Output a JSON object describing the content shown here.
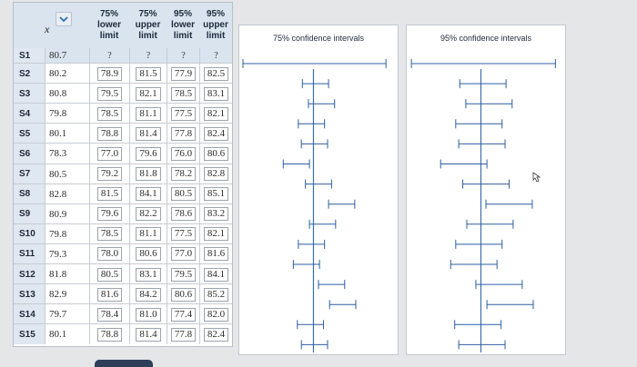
{
  "table": {
    "header": {
      "x_symbol": "x",
      "columns": [
        {
          "pct": "75%",
          "kind": "lower",
          "unit": "limit"
        },
        {
          "pct": "75%",
          "kind": "upper",
          "unit": "limit"
        },
        {
          "pct": "95%",
          "kind": "lower",
          "unit": "limit"
        },
        {
          "pct": "95%",
          "kind": "upper",
          "unit": "limit"
        }
      ]
    },
    "rows": [
      {
        "label": "S1",
        "x": "80.7",
        "c75l": "?",
        "c75u": "?",
        "c95l": "?",
        "c95u": "?"
      },
      {
        "label": "S2",
        "x": "80.2",
        "c75l": "78.9",
        "c75u": "81.5",
        "c95l": "77.9",
        "c95u": "82.5"
      },
      {
        "label": "S3",
        "x": "80.8",
        "c75l": "79.5",
        "c75u": "82.1",
        "c95l": "78.5",
        "c95u": "83.1"
      },
      {
        "label": "S4",
        "x": "79.8",
        "c75l": "78.5",
        "c75u": "81.1",
        "c95l": "77.5",
        "c95u": "82.1"
      },
      {
        "label": "S5",
        "x": "80.1",
        "c75l": "78.8",
        "c75u": "81.4",
        "c95l": "77.8",
        "c95u": "82.4"
      },
      {
        "label": "S6",
        "x": "78.3",
        "c75l": "77.0",
        "c75u": "79.6",
        "c95l": "76.0",
        "c95u": "80.6"
      },
      {
        "label": "S7",
        "x": "80.5",
        "c75l": "79.2",
        "c75u": "81.8",
        "c95l": "78.2",
        "c95u": "82.8"
      },
      {
        "label": "S8",
        "x": "82.8",
        "c75l": "81.5",
        "c75u": "84.1",
        "c95l": "80.5",
        "c95u": "85.1"
      },
      {
        "label": "S9",
        "x": "80.9",
        "c75l": "79.6",
        "c75u": "82.2",
        "c95l": "78.6",
        "c95u": "83.2"
      },
      {
        "label": "S10",
        "x": "79.8",
        "c75l": "78.5",
        "c75u": "81.1",
        "c95l": "77.5",
        "c95u": "82.1"
      },
      {
        "label": "S11",
        "x": "79.3",
        "c75l": "78.0",
        "c75u": "80.6",
        "c95l": "77.0",
        "c95u": "81.6"
      },
      {
        "label": "S12",
        "x": "81.8",
        "c75l": "80.5",
        "c75u": "83.1",
        "c95l": "79.5",
        "c95u": "84.1"
      },
      {
        "label": "S13",
        "x": "82.9",
        "c75l": "81.6",
        "c75u": "84.2",
        "c95l": "80.6",
        "c95u": "85.2"
      },
      {
        "label": "S14",
        "x": "79.7",
        "c75l": "78.4",
        "c75u": "81.0",
        "c95l": "77.4",
        "c95u": "82.0"
      },
      {
        "label": "S15",
        "x": "80.1",
        "c75l": "78.8",
        "c75u": "81.4",
        "c95l": "77.8",
        "c95u": "82.4"
      }
    ]
  },
  "panels": {
    "p75": {
      "title": "75% confidence intervals"
    },
    "p95": {
      "title": "95% confidence intervals"
    }
  },
  "chart_data": [
    {
      "type": "interval",
      "title": "75% confidence intervals",
      "center_line": 80.0,
      "xlim": [
        73.0,
        88.0
      ],
      "S1_interval": [
        73.0,
        87.2
      ],
      "intervals": [
        [
          78.9,
          81.5
        ],
        [
          79.5,
          82.1
        ],
        [
          78.5,
          81.1
        ],
        [
          78.8,
          81.4
        ],
        [
          77.0,
          79.6
        ],
        [
          79.2,
          81.8
        ],
        [
          81.5,
          84.1
        ],
        [
          79.6,
          82.2
        ],
        [
          78.5,
          81.1
        ],
        [
          78.0,
          80.6
        ],
        [
          80.5,
          83.1
        ],
        [
          81.6,
          84.2
        ],
        [
          78.4,
          81.0
        ],
        [
          78.8,
          81.4
        ]
      ]
    },
    {
      "type": "interval",
      "title": "95% confidence intervals",
      "center_line": 80.0,
      "xlim": [
        73.0,
        88.0
      ],
      "S1_interval": [
        73.1,
        87.4
      ],
      "intervals": [
        [
          77.9,
          82.5
        ],
        [
          78.5,
          83.1
        ],
        [
          77.5,
          82.1
        ],
        [
          77.8,
          82.4
        ],
        [
          76.0,
          80.6
        ],
        [
          78.2,
          82.8
        ],
        [
          80.5,
          85.1
        ],
        [
          78.6,
          83.2
        ],
        [
          77.5,
          82.1
        ],
        [
          77.0,
          81.6
        ],
        [
          79.5,
          84.1
        ],
        [
          80.6,
          85.2
        ],
        [
          77.4,
          82.0
        ],
        [
          77.8,
          82.4
        ]
      ]
    }
  ]
}
